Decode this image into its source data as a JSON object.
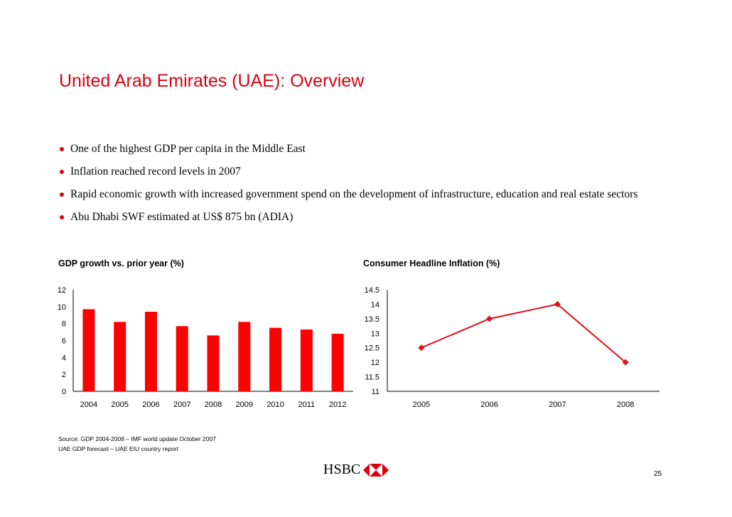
{
  "slide": {
    "title": "United Arab Emirates (UAE): Overview",
    "page_number": "25",
    "logo_text": "HSBC"
  },
  "bullets": [
    {
      "text": "One of the highest GDP per capita in the Middle East"
    },
    {
      "text": "Inflation reached record levels in 2007"
    },
    {
      "text": "Rapid economic growth with increased government spend on the development of infrastructure, education and real estate sectors"
    },
    {
      "text": "Abu Dhabi SWF estimated at US$ 875 bn (ADIA)"
    }
  ],
  "source": {
    "line1": "Source: GDP 2004-2008 – IMF world update October 2007",
    "line2": "UAE GDP forecast – UAE EIU country report"
  },
  "colors": {
    "accent": "#db0011",
    "bar": "#ff0000",
    "line": "#e0101a"
  },
  "chart_data": [
    {
      "type": "bar",
      "title": "GDP growth vs. prior year (%)",
      "categories": [
        "2004",
        "2005",
        "2006",
        "2007",
        "2008",
        "2009",
        "2010",
        "2011",
        "2012"
      ],
      "values": [
        9.7,
        8.2,
        9.4,
        7.7,
        6.6,
        8.2,
        7.5,
        7.3,
        6.8
      ],
      "ylim": [
        0,
        12
      ],
      "yticks": [
        "0",
        "2",
        "4",
        "6",
        "8",
        "10",
        "12"
      ],
      "xlabel": "",
      "ylabel": "",
      "grid": false
    },
    {
      "type": "line",
      "title": "Consumer Headline Inflation (%)",
      "categories": [
        "2005",
        "2006",
        "2007",
        "2008"
      ],
      "values": [
        12.5,
        13.5,
        14.0,
        12.0
      ],
      "ylim": [
        11,
        14.5
      ],
      "yticks": [
        "11",
        "11.5",
        "12",
        "12.5",
        "13",
        "13.5",
        "14",
        "14.5"
      ],
      "xlabel": "",
      "ylabel": "",
      "grid": false,
      "marker": "diamond"
    }
  ]
}
